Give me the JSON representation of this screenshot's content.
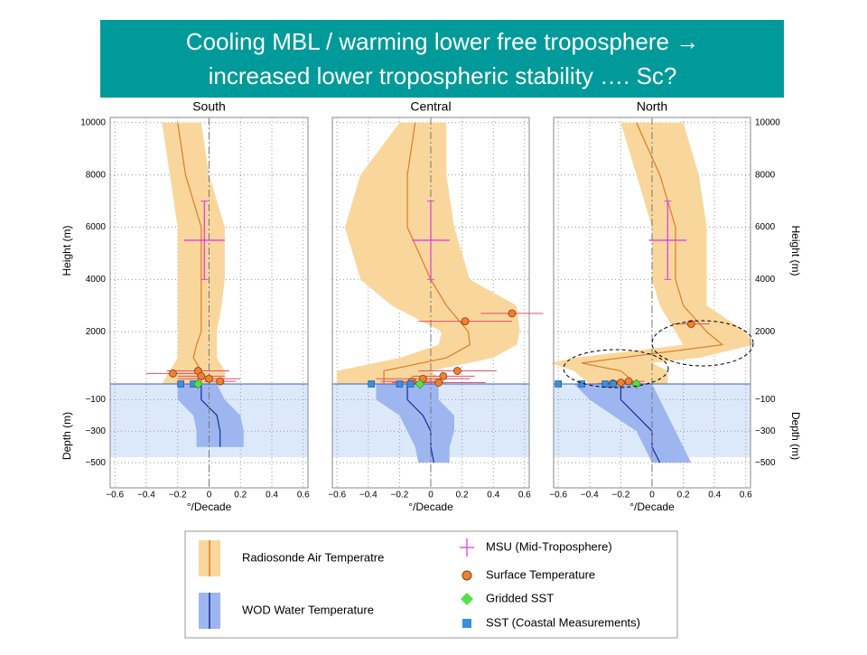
{
  "title": [
    "Cooling MBL / warming lower free troposphere →",
    "increased lower tropospheric stability …. Sc?"
  ],
  "legend": [
    {
      "name": "Radiosonde Air Temperatre",
      "color": "#f9d79c",
      "line_color": "#e07b28"
    },
    {
      "name": "WOD Water Temperature",
      "color": "#9db6ef",
      "line_color": "#1a2b9a"
    },
    {
      "name": "MSU (Mid-Troposphere)",
      "color": "#e040e0"
    },
    {
      "name": "Surface Temperature",
      "color": "#f08030"
    },
    {
      "name": "Gridded SST",
      "color": "#55e048"
    },
    {
      "name": "SST (Coastal Measurements)",
      "color": "#3a8ee0"
    }
  ],
  "chart_data": [
    {
      "type": "profile",
      "title": "South",
      "xlabel": "°/Decade",
      "ylabel": "Height (m)",
      "y2label": "Depth (m)",
      "ytick_side": "left",
      "xlim": [
        -0.63,
        0.63
      ],
      "xticks": [
        {
          "value": -0.6,
          "label": "−0.6"
        },
        {
          "value": -0.4,
          "label": "−0.4"
        },
        {
          "value": -0.2,
          "label": "−0.2"
        },
        0,
        0.2,
        0.4,
        0.6
      ],
      "ylim": [
        0,
        10200
      ],
      "yticks": [
        2000,
        4000,
        6000,
        8000,
        10000
      ],
      "y2lim": [
        -660,
        0
      ],
      "y2ticks": [
        {
          "value": -100,
          "label": "−100"
        },
        {
          "value": -300,
          "label": "−300"
        },
        {
          "value": -500,
          "label": "−500"
        }
      ],
      "grid": true,
      "air": {
        "heights": [
          0,
          500,
          1000,
          1500,
          2000,
          3000,
          4000,
          6000,
          8000,
          10000
        ],
        "center": [
          -0.05,
          -0.05,
          -0.1,
          -0.08,
          -0.05,
          -0.05,
          -0.05,
          -0.05,
          -0.15,
          -0.2
        ],
        "lower": [
          -0.3,
          -0.25,
          -0.2,
          -0.2,
          -0.2,
          -0.2,
          -0.2,
          -0.2,
          -0.25,
          -0.3
        ],
        "upper": [
          0.1,
          0.1,
          0.05,
          0.05,
          0.05,
          0.08,
          0.1,
          0.1,
          0.0,
          -0.05
        ]
      },
      "water": {
        "depths": [
          0,
          -100,
          -200,
          -300,
          -400
        ],
        "center": [
          -0.05,
          -0.05,
          0.05,
          0.07,
          0.07
        ],
        "lower": [
          -0.2,
          -0.2,
          -0.1,
          -0.08,
          -0.08
        ],
        "upper": [
          0.05,
          0.1,
          0.2,
          0.22,
          0.22
        ]
      },
      "msu": {
        "x": -0.03,
        "xerr": 0.13,
        "y": 5500,
        "ymin": 4000,
        "ymax": 7000
      },
      "surface": {
        "x": [
          -0.23,
          -0.07,
          -0.05,
          0.0,
          0.07
        ],
        "y": [
          400,
          500,
          300,
          200,
          100
        ],
        "xerr": [
          0.17,
          0.2,
          0.15,
          0.2,
          0.1
        ]
      },
      "gridded": {
        "x": [
          -0.07
        ],
        "y": [
          0
        ]
      },
      "coastal": {
        "x": [
          -0.18,
          -0.1
        ],
        "y": [
          0,
          0
        ]
      }
    },
    {
      "type": "profile",
      "title": "Central",
      "xlabel": "°/Decade",
      "ytick_side": "none",
      "xlim": [
        -0.63,
        0.63
      ],
      "xticks": [
        {
          "value": -0.6,
          "label": "−0.6"
        },
        {
          "value": -0.4,
          "label": "−0.4"
        },
        {
          "value": -0.2,
          "label": "−0.2"
        },
        0,
        0.2,
        0.4,
        0.6
      ],
      "ylim": [
        0,
        10200
      ],
      "yticks": [
        2000,
        4000,
        6000,
        8000,
        10000
      ],
      "y2lim": [
        -660,
        0
      ],
      "y2ticks": [
        -100,
        -300,
        -500
      ],
      "grid": true,
      "air": {
        "heights": [
          0,
          500,
          1000,
          1500,
          2000,
          3000,
          4000,
          6000,
          8000,
          10000
        ],
        "center": [
          -0.3,
          -0.3,
          0.1,
          0.25,
          0.24,
          0.1,
          0.0,
          -0.15,
          -0.15,
          -0.1
        ],
        "lower": [
          -0.6,
          -0.6,
          -0.2,
          0.05,
          0.07,
          -0.25,
          -0.45,
          -0.55,
          -0.45,
          -0.2
        ],
        "upper": [
          0.1,
          0.0,
          0.4,
          0.55,
          0.57,
          0.55,
          0.25,
          0.15,
          0.1,
          0.1
        ]
      },
      "water": {
        "depths": [
          0,
          -100,
          -200,
          -300,
          -400,
          -500
        ],
        "center": [
          -0.15,
          -0.15,
          -0.05,
          0.0,
          0.0,
          0.02
        ],
        "lower": [
          -0.35,
          -0.35,
          -0.2,
          -0.15,
          -0.1,
          -0.08
        ],
        "upper": [
          0.05,
          0.05,
          0.15,
          0.15,
          0.12,
          0.12
        ]
      },
      "msu": {
        "x": 0.0,
        "xerr": 0.12,
        "y": 5500,
        "ymin": 4000,
        "ymax": 7000
      },
      "surface": {
        "x": [
          0.52,
          0.22,
          0.17,
          0.08,
          -0.05,
          -0.12,
          0.05
        ],
        "y": [
          2700,
          2400,
          500,
          300,
          200,
          100,
          50
        ],
        "xerr": [
          0.2,
          0.3,
          0.25,
          0.2,
          0.3,
          0.2,
          0.3
        ]
      },
      "gridded": {
        "x": [
          -0.07
        ],
        "y": [
          0
        ]
      },
      "coastal": {
        "x": [
          -0.38,
          -0.2,
          -0.13
        ],
        "y": [
          0,
          0,
          0
        ]
      }
    },
    {
      "type": "profile",
      "title": "North",
      "xlabel": "°/Decade",
      "ylabel": "Height (m)",
      "y2label": "Depth (m)",
      "ytick_side": "right",
      "xlim": [
        -0.63,
        0.63
      ],
      "xticks": [
        {
          "value": -0.6,
          "label": "−0.6"
        },
        {
          "value": -0.4,
          "label": "−0.4"
        },
        {
          "value": -0.2,
          "label": "−0.2"
        },
        0,
        0.2,
        0.4,
        0.6
      ],
      "ylim": [
        0,
        10200
      ],
      "yticks": [
        2000,
        4000,
        6000,
        8000,
        10000
      ],
      "y2lim": [
        -660,
        0
      ],
      "y2ticks": [
        {
          "value": -100,
          "label": "−100"
        },
        {
          "value": -300,
          "label": "−300"
        },
        {
          "value": -500,
          "label": "−500"
        }
      ],
      "grid": true,
      "air": {
        "heights": [
          0,
          500,
          800,
          1000,
          1500,
          2000,
          3000,
          4000,
          6000,
          8000,
          10000
        ],
        "center": [
          -0.1,
          -0.2,
          -0.45,
          -0.2,
          0.45,
          0.35,
          0.2,
          0.15,
          0.15,
          0.05,
          -0.1
        ],
        "lower": [
          -0.4,
          -0.5,
          -0.65,
          -0.5,
          0.2,
          0.15,
          0.05,
          0.0,
          0.0,
          -0.1,
          -0.2
        ],
        "upper": [
          0.1,
          0.1,
          0.0,
          0.3,
          0.65,
          0.6,
          0.35,
          0.35,
          0.35,
          0.3,
          0.2
        ]
      },
      "water": {
        "depths": [
          0,
          -100,
          -200,
          -300,
          -400,
          -500
        ],
        "center": [
          -0.2,
          -0.2,
          -0.1,
          0.0,
          0.0,
          0.05
        ],
        "lower": [
          -0.5,
          -0.4,
          -0.25,
          -0.1,
          -0.05,
          0.0
        ],
        "upper": [
          0.0,
          0.05,
          0.1,
          0.15,
          0.2,
          0.25
        ]
      },
      "msu": {
        "x": 0.1,
        "xerr": 0.12,
        "y": 5500,
        "ymin": 4000,
        "ymax": 7000
      },
      "surface": {
        "x": [
          0.25,
          -0.15,
          -0.2,
          -0.25
        ],
        "y": [
          2300,
          100,
          50,
          20
        ],
        "xerr": [
          0.12,
          0.1,
          0.1,
          0.1
        ]
      },
      "gridded": {
        "x": [
          -0.1
        ],
        "y": [
          0
        ]
      },
      "coastal": {
        "x": [
          -0.6,
          -0.45,
          -0.3,
          -0.25
        ],
        "y": [
          0,
          0,
          0,
          0
        ]
      }
    }
  ]
}
